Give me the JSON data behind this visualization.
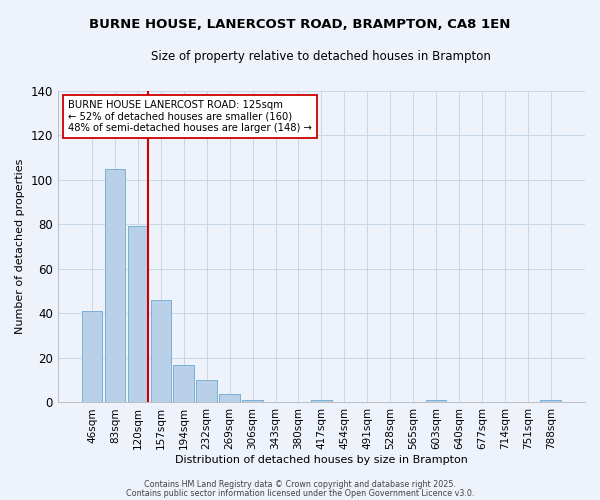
{
  "title": "BURNE HOUSE, LANERCOST ROAD, BRAMPTON, CA8 1EN",
  "subtitle": "Size of property relative to detached houses in Brampton",
  "xlabel": "Distribution of detached houses by size in Brampton",
  "ylabel": "Number of detached properties",
  "bar_labels": [
    "46sqm",
    "83sqm",
    "120sqm",
    "157sqm",
    "194sqm",
    "232sqm",
    "269sqm",
    "306sqm",
    "343sqm",
    "380sqm",
    "417sqm",
    "454sqm",
    "491sqm",
    "528sqm",
    "565sqm",
    "603sqm",
    "640sqm",
    "677sqm",
    "714sqm",
    "751sqm",
    "788sqm"
  ],
  "bar_values": [
    41,
    105,
    79,
    46,
    17,
    10,
    4,
    1,
    0,
    0,
    1,
    0,
    0,
    0,
    0,
    1,
    0,
    0,
    0,
    0,
    1
  ],
  "bar_color": "#b8d0e8",
  "bar_edge_color": "#7aafd4",
  "grid_color": "#c8d8e8",
  "bg_color": "#eef2fa",
  "vline_color": "#cc0000",
  "annotation_text": "BURNE HOUSE LANERCOST ROAD: 125sqm\n← 52% of detached houses are smaller (160)\n48% of semi-detached houses are larger (148) →",
  "annotation_box_color": "#ffffff",
  "annotation_box_edge": "#cc0000",
  "ylim": [
    0,
    140
  ],
  "yticks": [
    0,
    20,
    40,
    60,
    80,
    100,
    120,
    140
  ],
  "footnote1": "Contains HM Land Registry data © Crown copyright and database right 2025.",
  "footnote2": "Contains public sector information licensed under the Open Government Licence v3.0."
}
